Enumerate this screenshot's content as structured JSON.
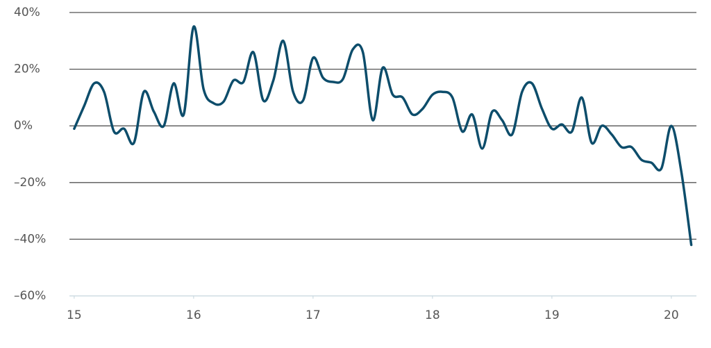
{
  "chart_data": {
    "type": "line",
    "x": [
      15,
      15.083,
      15.167,
      15.25,
      15.333,
      15.417,
      15.5,
      15.583,
      15.667,
      15.75,
      15.833,
      15.917,
      16,
      16.083,
      16.167,
      16.25,
      16.333,
      16.417,
      16.5,
      16.583,
      16.667,
      16.75,
      16.833,
      16.917,
      17,
      17.083,
      17.167,
      17.25,
      17.333,
      17.417,
      17.5,
      17.583,
      17.667,
      17.75,
      17.833,
      17.917,
      18,
      18.083,
      18.167,
      18.25,
      18.333,
      18.417,
      18.5,
      18.583,
      18.667,
      18.75,
      18.833,
      18.917,
      19,
      19.083,
      19.167,
      19.25,
      19.333,
      19.417,
      19.5,
      19.583,
      19.667,
      19.75,
      19.833,
      19.917,
      20,
      20.083,
      20.167
    ],
    "series": [
      {
        "color": "#0d4d6b",
        "values": [
          -1,
          7,
          15,
          12,
          -2,
          -1,
          -6,
          12,
          5,
          0,
          15,
          4,
          35,
          13,
          8,
          8.5,
          16,
          15.5,
          26,
          9,
          16,
          30,
          12,
          9,
          24,
          17,
          15.5,
          16.5,
          27,
          26,
          2,
          20.5,
          11,
          10,
          4,
          6,
          11,
          12,
          10,
          -2,
          4,
          -8,
          5,
          2,
          -3,
          12,
          15,
          6,
          -1,
          0.5,
          -2,
          10,
          -6,
          0,
          -3,
          -7.5,
          -7.5,
          -12,
          -13,
          -15,
          0,
          -16,
          -42
        ]
      }
    ],
    "xlim": [
      14.96,
      20.21
    ],
    "xticks": [
      15,
      16,
      17,
      18,
      19,
      20
    ],
    "ylim": [
      -60,
      40
    ],
    "yticks": [
      {
        "value": -60,
        "label": "–60%"
      },
      {
        "value": -40,
        "label": "–40%"
      },
      {
        "value": -20,
        "label": "–20%"
      },
      {
        "value": 0,
        "label": "0%"
      },
      {
        "value": 20,
        "label": "20%"
      },
      {
        "value": 40,
        "label": "40%"
      }
    ],
    "grid": true
  }
}
